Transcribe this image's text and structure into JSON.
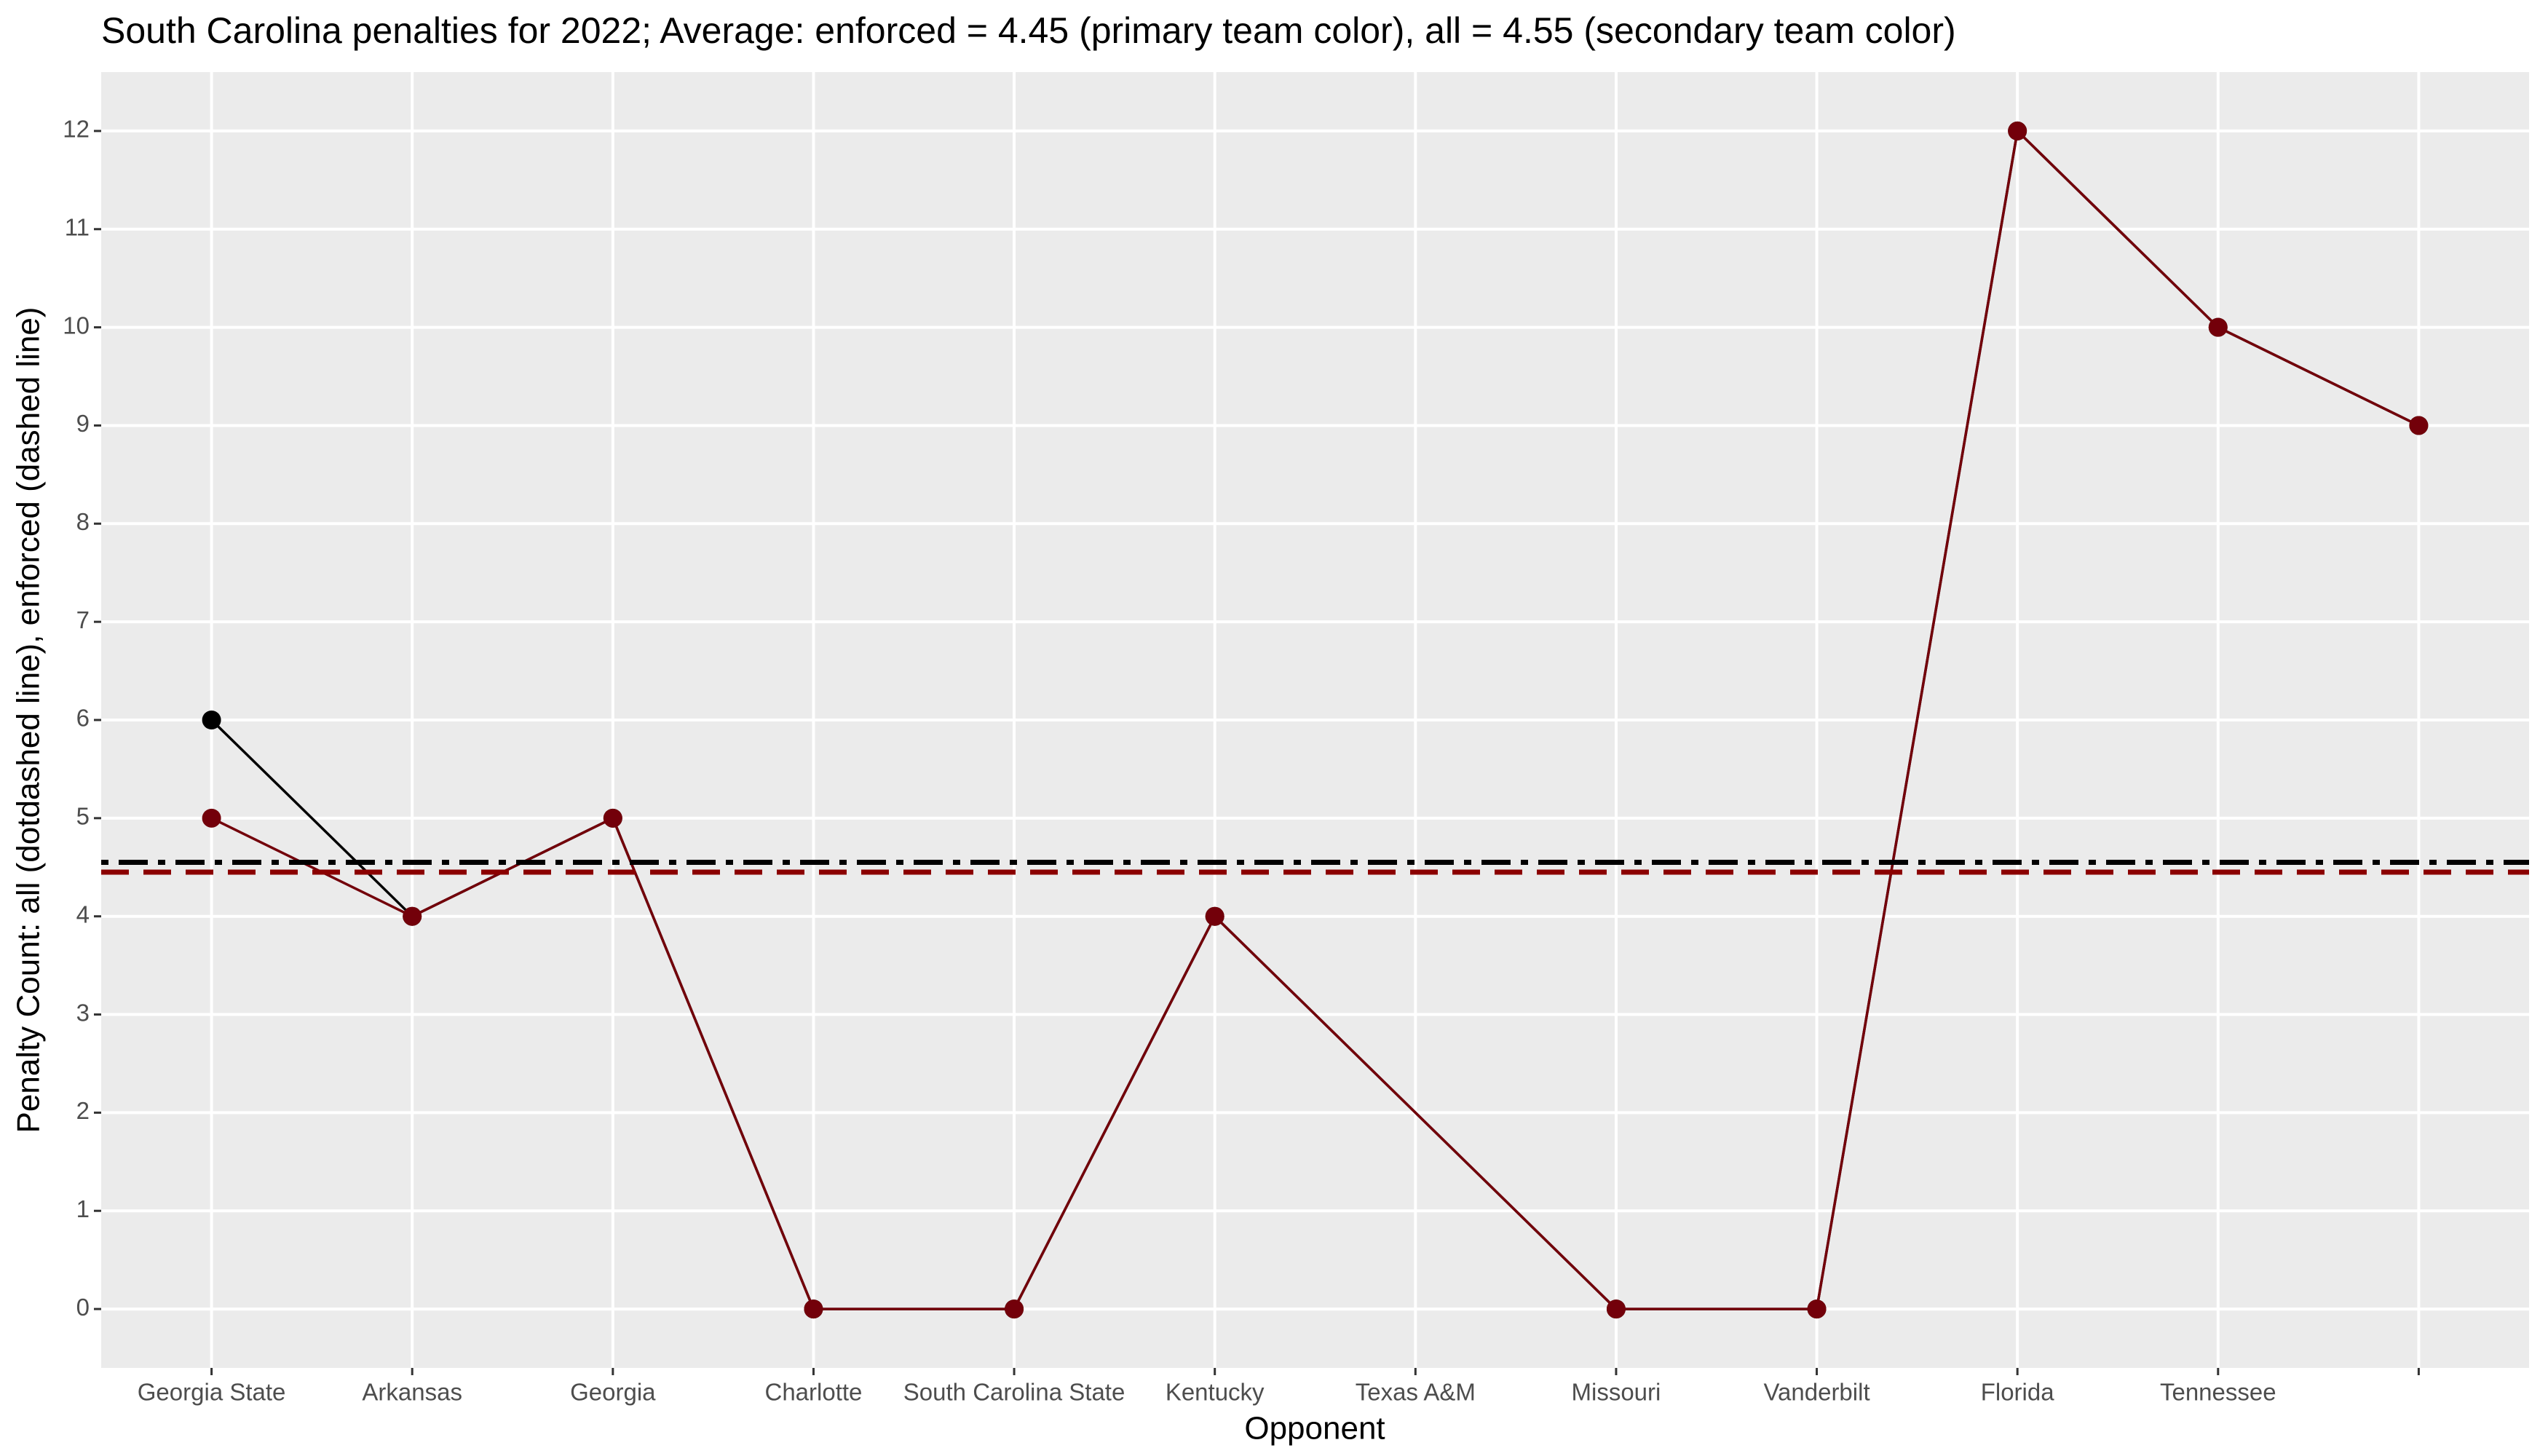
{
  "chart_data": {
    "type": "line",
    "title": "South Carolina penalties for 2022; Average: enforced = 4.45 (primary team color), all = 4.55 (secondary team color)",
    "x_label": "Opponent",
    "y_label": "Penalty Count: all (dotdashed line), enforced (dashed line)",
    "xlim": [
      0.45,
      12.55
    ],
    "xticks": [
      {
        "value": 1,
        "label": "Georgia State"
      },
      {
        "value": 2,
        "label": "Arkansas"
      },
      {
        "value": 3,
        "label": "Georgia"
      },
      {
        "value": 4,
        "label": "Charlotte"
      },
      {
        "value": 5,
        "label": "South Carolina State"
      },
      {
        "value": 6,
        "label": "Kentucky"
      },
      {
        "value": 7,
        "label": "Texas A&M"
      },
      {
        "value": 8,
        "label": "Missouri"
      },
      {
        "value": 9,
        "label": "Vanderbilt"
      },
      {
        "value": 10,
        "label": "Florida"
      },
      {
        "value": 11,
        "label": "Tennessee"
      },
      {
        "value": 12,
        "label": null
      }
    ],
    "ylim": [
      -0.6,
      12.6
    ],
    "yticks": [
      0,
      1,
      2,
      3,
      4,
      5,
      6,
      7,
      8,
      9,
      10,
      11,
      12
    ],
    "grid": true,
    "series": [
      {
        "name": "all",
        "color": "#000000",
        "x": [
          1,
          2,
          3,
          4,
          5,
          6,
          8,
          9,
          10,
          11,
          12
        ],
        "values": [
          6,
          4,
          5,
          0,
          0,
          4,
          0,
          0,
          12,
          10,
          9
        ]
      },
      {
        "name": "enforced",
        "color": "#73000a",
        "x": [
          1,
          2,
          3,
          4,
          5,
          6,
          8,
          9,
          10,
          11,
          12
        ],
        "values": [
          5,
          4,
          5,
          0,
          0,
          4,
          0,
          0,
          12,
          10,
          9
        ]
      }
    ],
    "hlines": [
      {
        "value": 4.55,
        "color": "#000000",
        "dash": "dotdash"
      },
      {
        "value": 4.45,
        "color": "#8b0000",
        "dash": "dashed"
      }
    ]
  }
}
